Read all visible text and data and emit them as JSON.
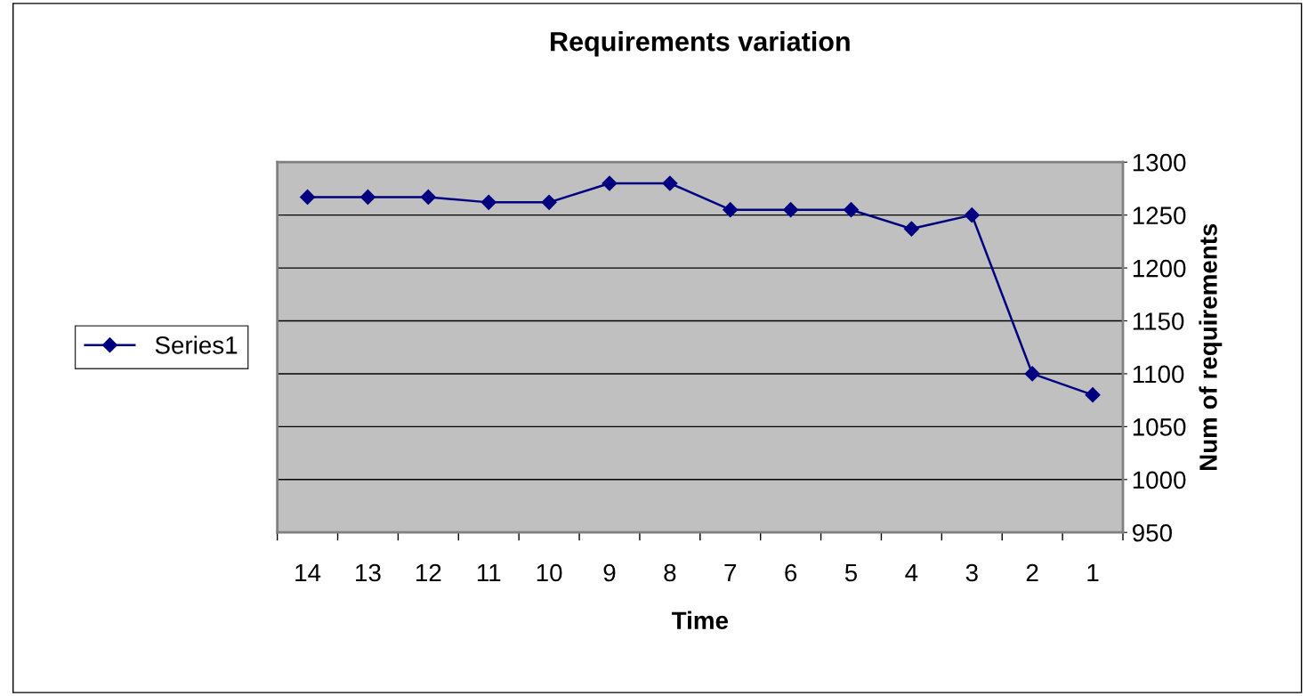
{
  "chart_data": {
    "type": "line",
    "title": "Requirements variation",
    "xlabel": "Time",
    "ylabel": "Num of requirements",
    "categories": [
      "14",
      "13",
      "12",
      "11",
      "10",
      "9",
      "8",
      "7",
      "6",
      "5",
      "4",
      "3",
      "2",
      "1"
    ],
    "series": [
      {
        "name": "Series1",
        "color": "#000080",
        "values": [
          1267,
          1267,
          1267,
          1262,
          1262,
          1280,
          1280,
          1255,
          1255,
          1255,
          1237,
          1250,
          1100,
          1080
        ]
      }
    ],
    "ylim": [
      950,
      1300
    ],
    "yticks": [
      950,
      1000,
      1050,
      1100,
      1150,
      1200,
      1250,
      1300
    ],
    "grid": "y",
    "legend": "left",
    "marker": "diamond",
    "line_style": "solid"
  }
}
